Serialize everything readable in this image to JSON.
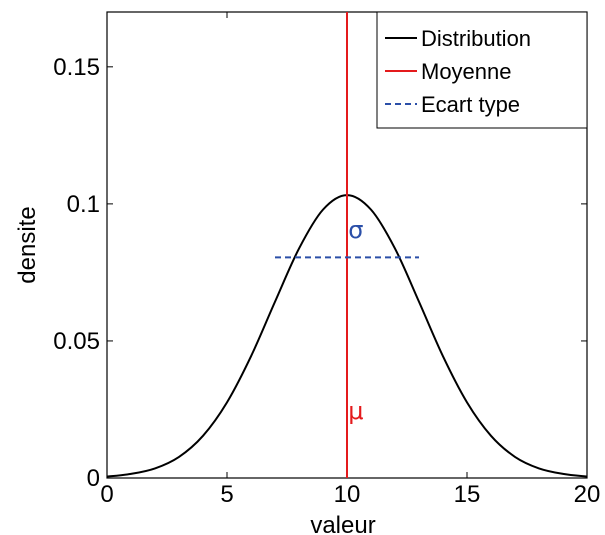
{
  "chart_data": {
    "type": "line",
    "xlabel": "valeur",
    "ylabel": "densite",
    "xlim": [
      0,
      20
    ],
    "ylim": [
      0,
      0.17
    ],
    "xticks": [
      0,
      5,
      10,
      15,
      20
    ],
    "xtick_labels": [
      "0",
      "5",
      "10",
      "15",
      "20"
    ],
    "yticks": [
      0,
      0.05,
      0.1,
      0.15
    ],
    "ytick_labels": [
      "0",
      "0.05",
      "0.1",
      "0.15"
    ],
    "grid": false,
    "legend_position": "top-right",
    "series": [
      {
        "name": "Distribution",
        "color": "#000000",
        "style": "solid",
        "x": [
          0,
          1,
          2,
          3,
          4,
          5,
          6,
          7,
          8,
          9,
          10,
          11,
          12,
          13,
          14,
          15,
          16,
          17,
          18,
          19,
          20
        ],
        "y": [
          0.0005,
          0.0015,
          0.0035,
          0.0077,
          0.0154,
          0.0276,
          0.0444,
          0.0643,
          0.0837,
          0.0979,
          0.1032,
          0.0979,
          0.0837,
          0.0643,
          0.0444,
          0.0276,
          0.0154,
          0.0077,
          0.0035,
          0.0015,
          0.0005
        ]
      },
      {
        "name": "Moyenne",
        "color": "#e41a1c",
        "style": "solid",
        "x": [
          10,
          10
        ],
        "y": [
          0,
          0.17
        ]
      },
      {
        "name": "Ecart type",
        "color": "#2b4fa8",
        "style": "dashed",
        "x": [
          7,
          13
        ],
        "y": [
          0.0805,
          0.0805
        ]
      }
    ],
    "annotations": [
      {
        "text": "σ",
        "x": 10.05,
        "y": 0.0875,
        "color": "#2b4fa8"
      },
      {
        "text": "μ",
        "x": 10.05,
        "y": 0.0215,
        "color": "#e41a1c"
      }
    ]
  }
}
